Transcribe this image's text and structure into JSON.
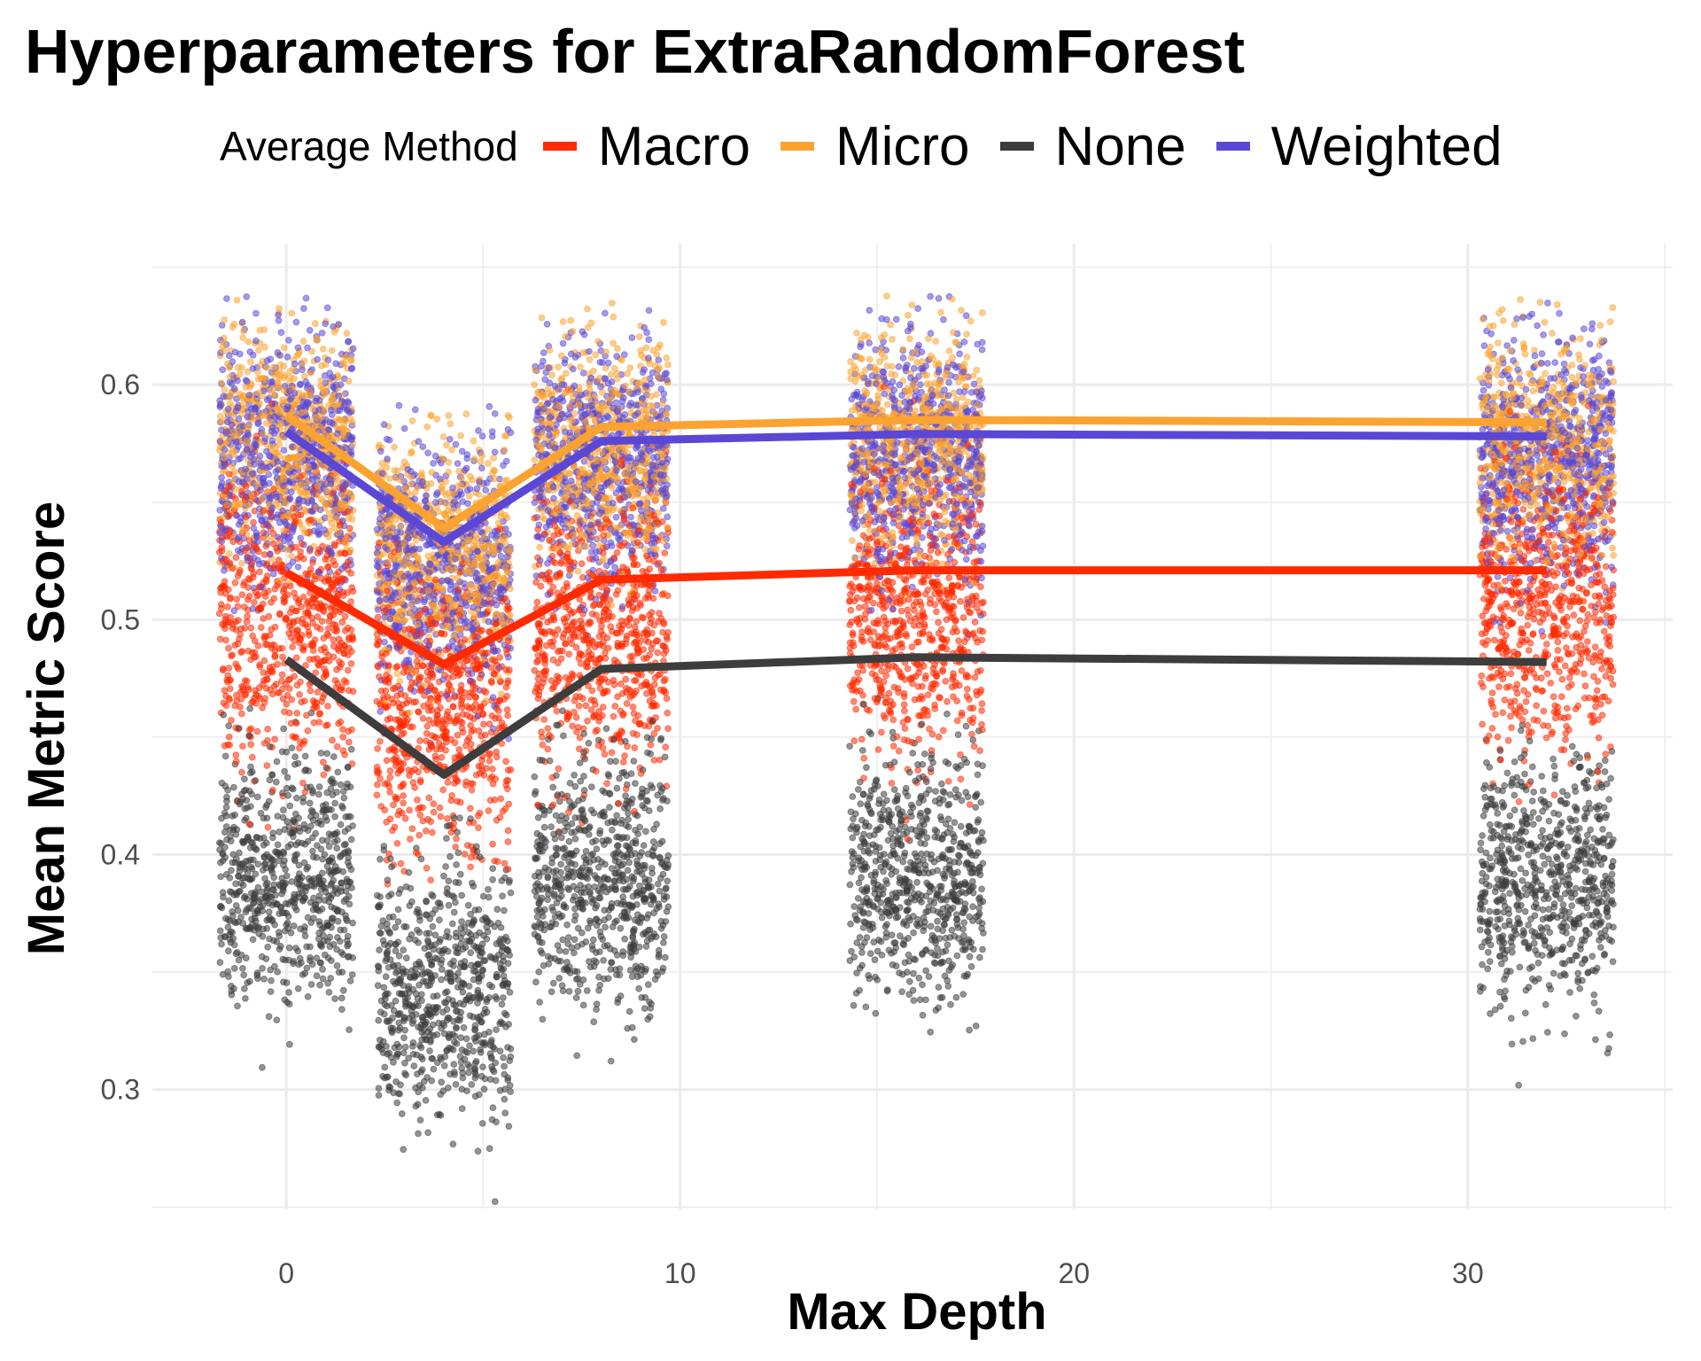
{
  "chart_data": {
    "type": "scatter",
    "title": "Hyperparameters for ExtraRandomForest",
    "xlabel": "Max Depth",
    "ylabel": "Mean Metric Score",
    "xlim": [
      -3.4,
      35.2
    ],
    "ylim": [
      0.249,
      0.66
    ],
    "x_ticks": [
      0,
      10,
      20,
      30
    ],
    "y_ticks": [
      0.3,
      0.4,
      0.5,
      0.6
    ],
    "grid": true,
    "legend": {
      "title": "Average Method",
      "position": "top"
    },
    "x": [
      0,
      4,
      8,
      16,
      32
    ],
    "series": [
      {
        "name": "Macro",
        "color": "#FF2A00",
        "values": [
          0.52,
          0.481,
          0.517,
          0.521,
          0.521
        ]
      },
      {
        "name": "Micro",
        "color": "#FBA330",
        "values": [
          0.587,
          0.539,
          0.582,
          0.585,
          0.584
        ]
      },
      {
        "name": "None",
        "color": "#3D3D3D",
        "values": [
          0.483,
          0.434,
          0.479,
          0.484,
          0.482
        ]
      },
      {
        "name": "Weighted",
        "color": "#5A47D6",
        "values": [
          0.58,
          0.533,
          0.576,
          0.579,
          0.578
        ]
      }
    ],
    "point_clouds": [
      {
        "series": "None",
        "min": 0.26,
        "max": 0.47,
        "center": 0.39,
        "spread": 0.04
      },
      {
        "series": "Macro",
        "min": 0.33,
        "max": 0.62,
        "center": 0.5,
        "spread": 0.045
      },
      {
        "series": "Micro",
        "min": 0.44,
        "max": 0.64,
        "center": 0.575,
        "spread": 0.035
      },
      {
        "series": "Weighted",
        "min": 0.43,
        "max": 0.64,
        "center": 0.57,
        "spread": 0.038
      }
    ]
  }
}
